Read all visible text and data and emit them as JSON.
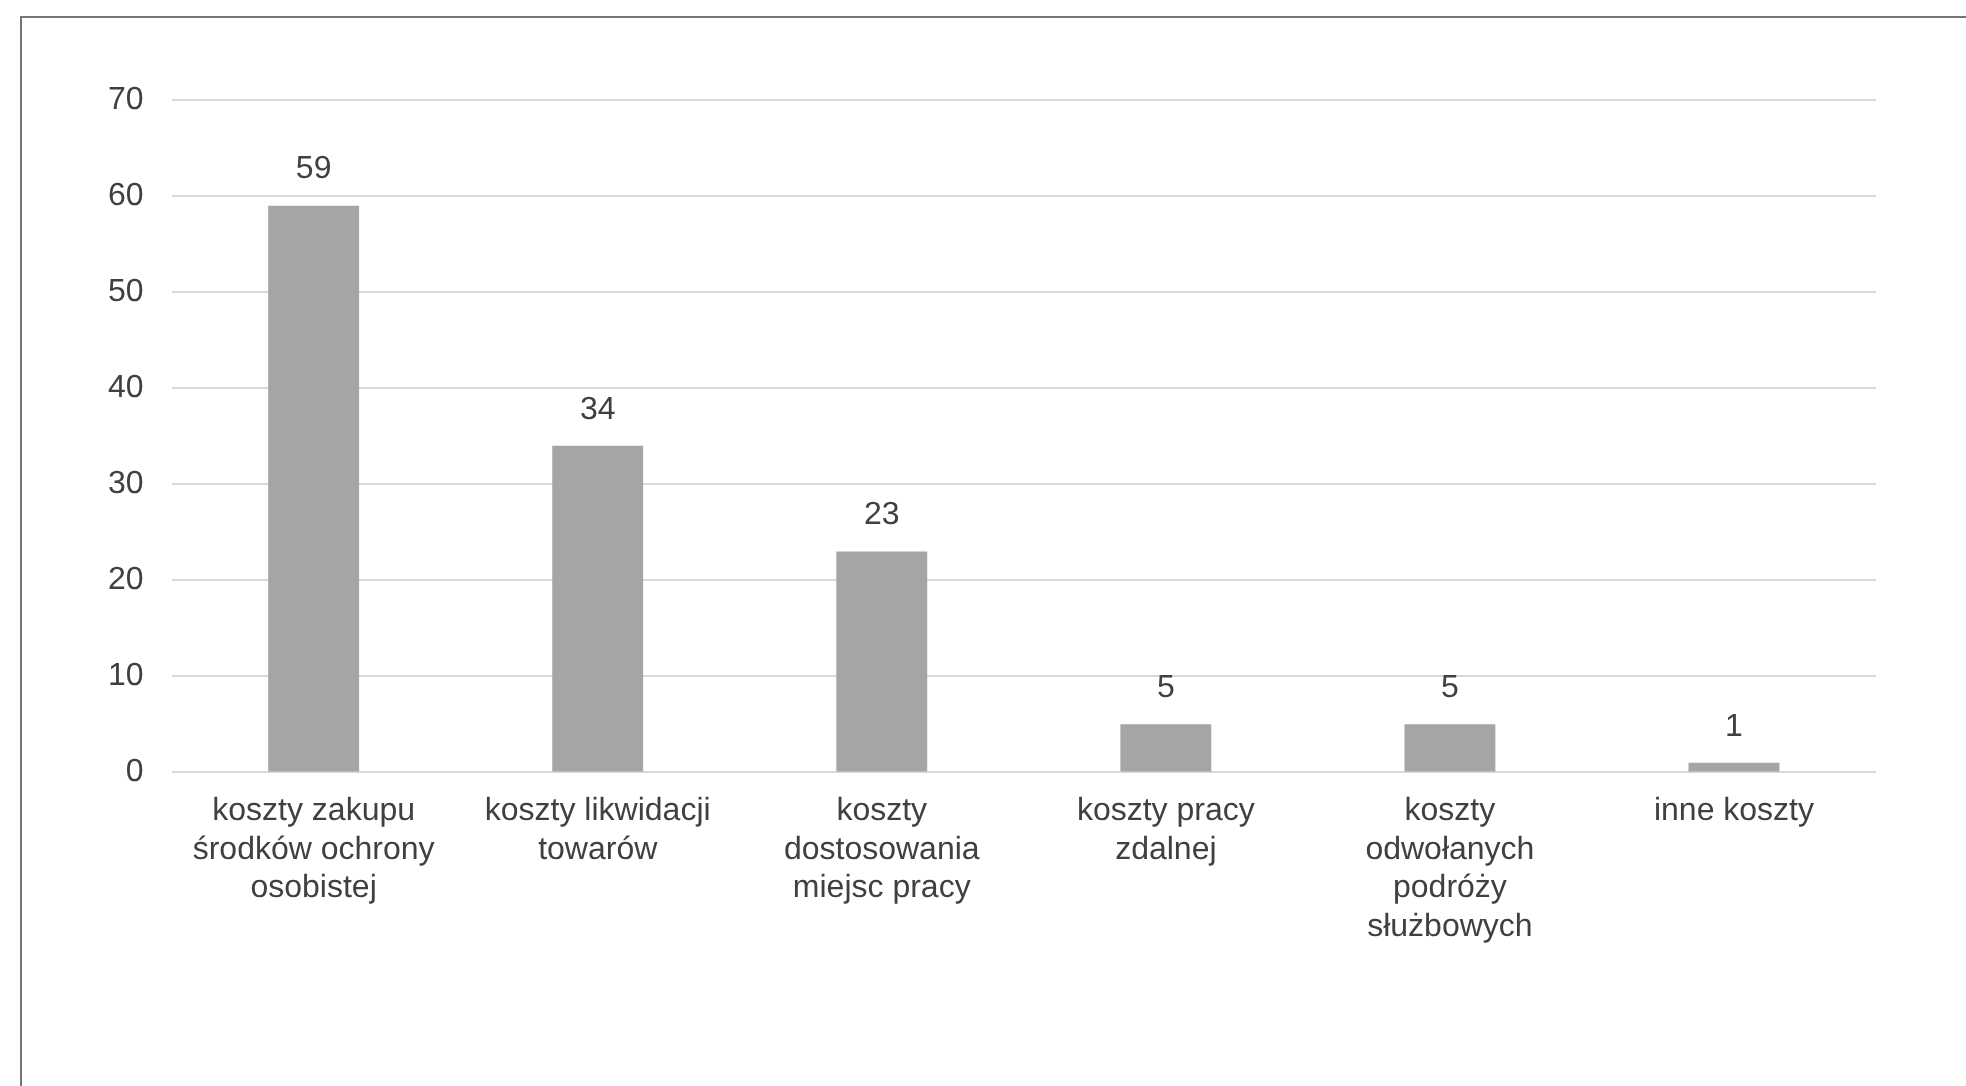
{
  "chart_data": {
    "type": "bar",
    "categories": [
      "koszty zakupu środków ochrony osobistej",
      "koszty likwidacji towarów",
      "koszty dostosowania miejsc pracy",
      "koszty pracy zdalnej",
      "koszty odwołanych podróży służbowych",
      "inne koszty"
    ],
    "values": [
      59,
      34,
      23,
      5,
      5,
      1
    ],
    "color": "#a5a5a5",
    "ylim": [
      0,
      70
    ],
    "yticks": [
      0,
      10,
      20,
      30,
      40,
      50,
      60,
      70
    ],
    "grid": "y",
    "legend": false,
    "data_labels": true
  }
}
